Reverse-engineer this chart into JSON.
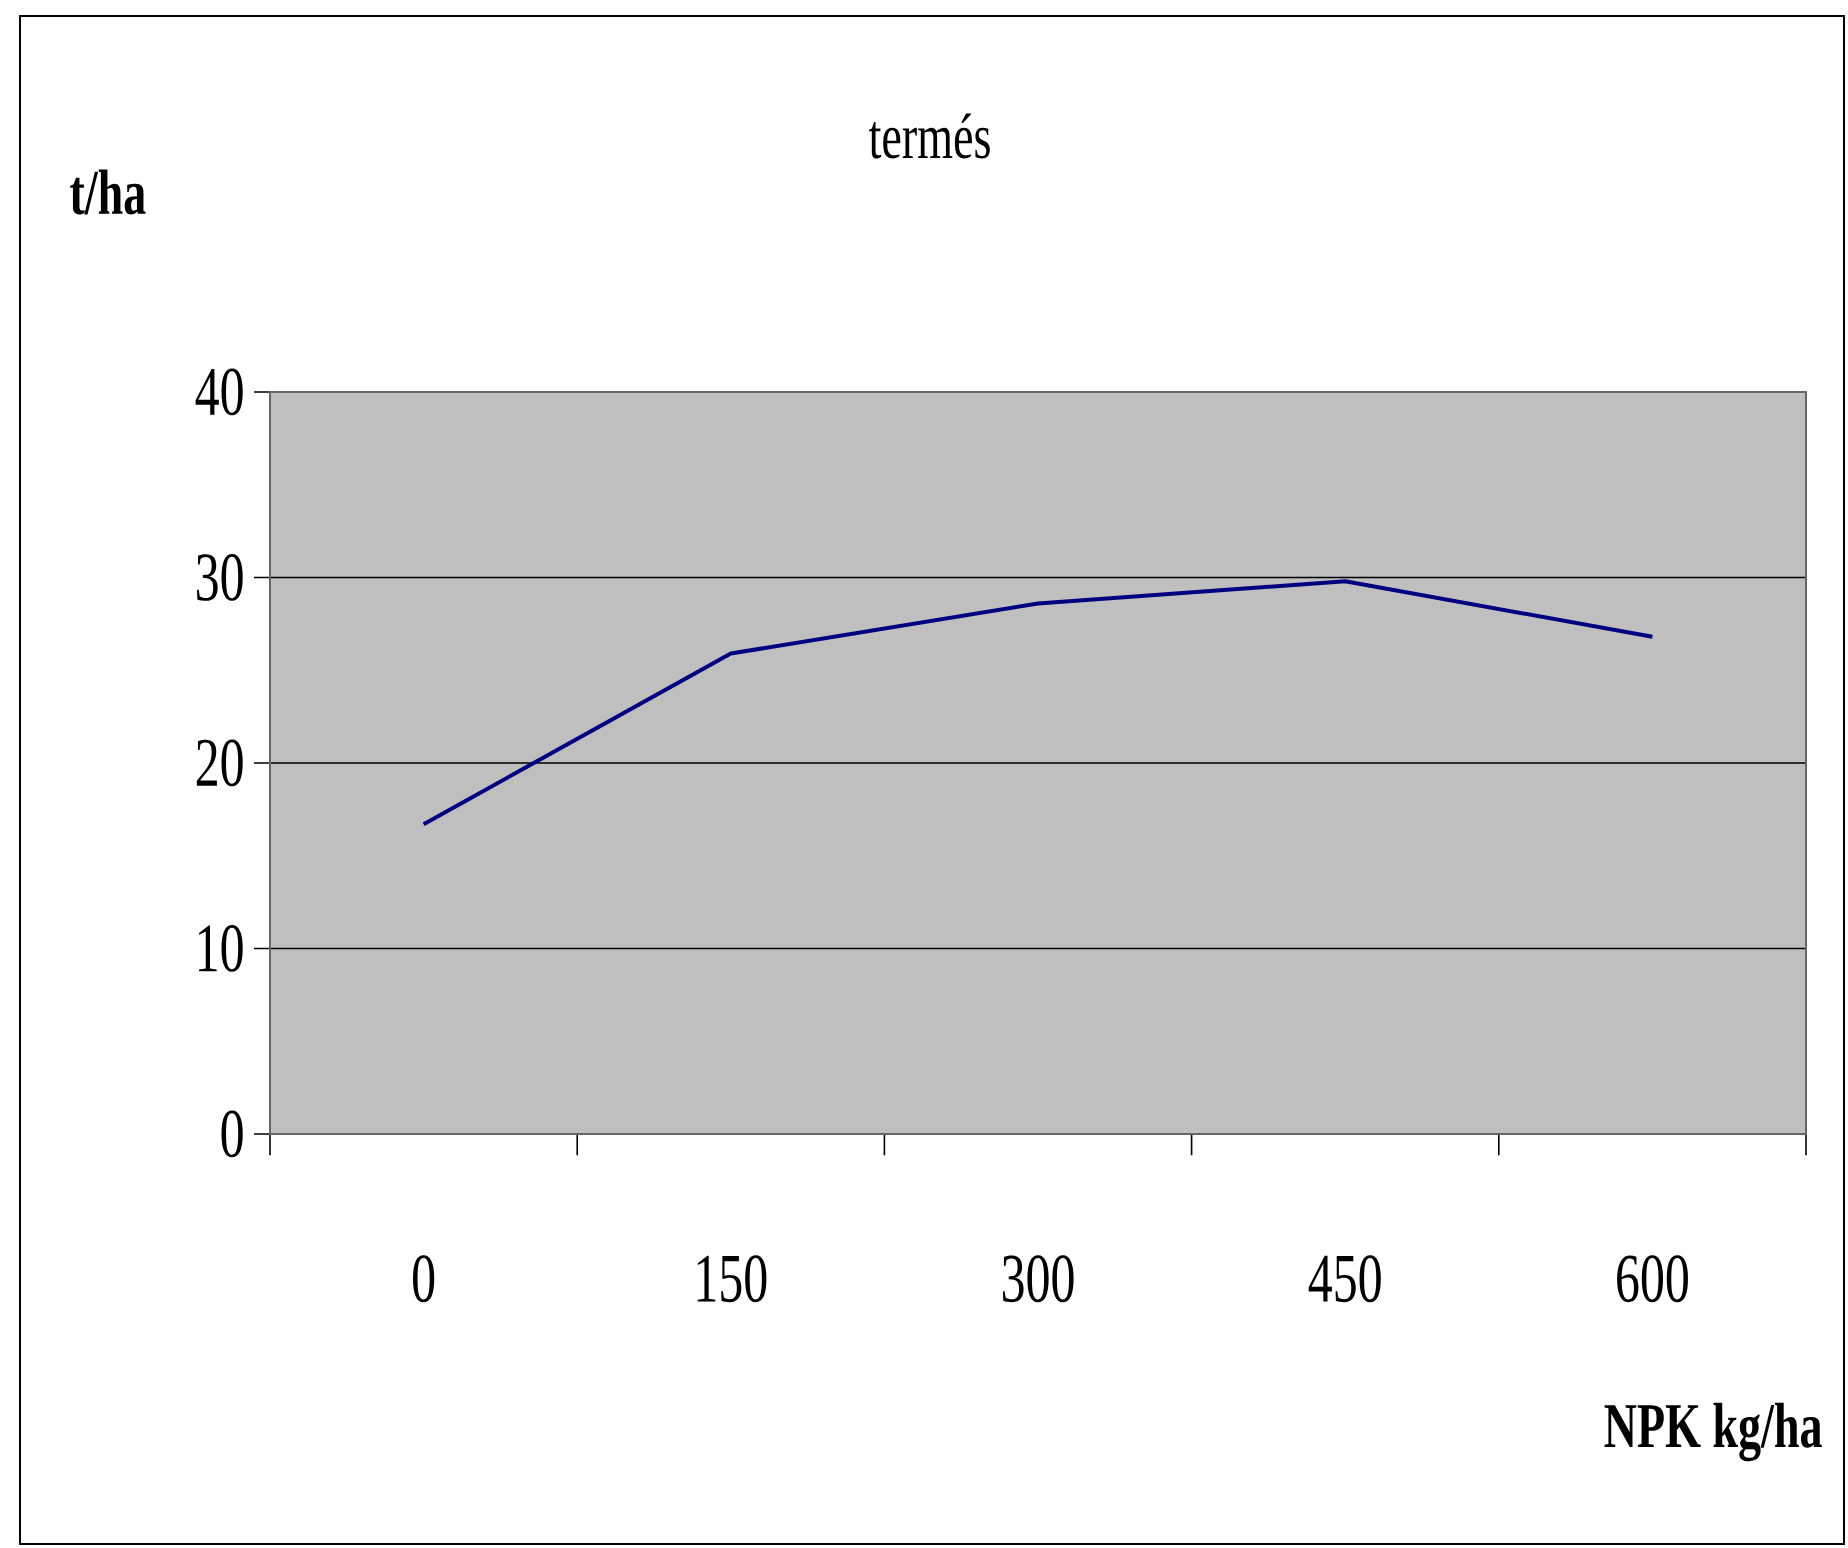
{
  "chart_data": {
    "type": "line",
    "title": "termés",
    "ylabel": "t/ha",
    "xlabel": "NPK kg/ha",
    "categories": [
      "0",
      "150",
      "300",
      "450",
      "600"
    ],
    "series": [
      {
        "color": "#000080",
        "values": [
          16.7,
          25.9,
          28.6,
          29.8,
          26.8
        ]
      }
    ],
    "ylim": [
      0,
      40
    ],
    "yticks": [
      0,
      10,
      20,
      30,
      40
    ],
    "grid": "y"
  }
}
